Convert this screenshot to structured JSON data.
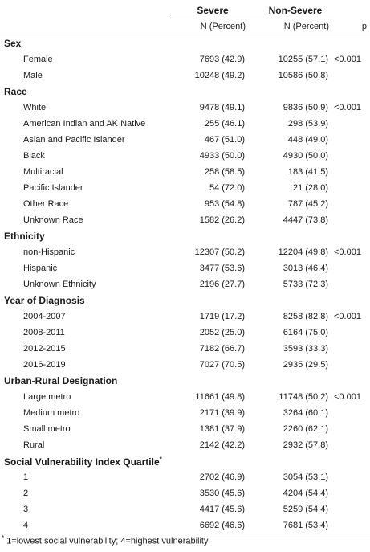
{
  "header": {
    "group_severe": "Severe",
    "group_non_severe": "Non-Severe",
    "sub_severe": "N (Percent)",
    "sub_non_severe": "N (Percent)",
    "p_label": "p"
  },
  "sections": [
    {
      "title": "Sex",
      "marker": "",
      "rows": [
        {
          "label": "Female",
          "severe": "7693 (42.9)",
          "non_severe": "10255 (57.1)",
          "p": "<0.001"
        },
        {
          "label": "Male",
          "severe": "10248 (49.2)",
          "non_severe": "10586 (50.8)",
          "p": ""
        }
      ]
    },
    {
      "title": "Race",
      "marker": "",
      "rows": [
        {
          "label": "White",
          "severe": "9478 (49.1)",
          "non_severe": "9836 (50.9)",
          "p": "<0.001"
        },
        {
          "label": "American Indian and AK Native",
          "severe": "255 (46.1)",
          "non_severe": "298 (53.9)",
          "p": ""
        },
        {
          "label": "Asian and Pacific Islander",
          "severe": "467 (51.0)",
          "non_severe": "448 (49.0)",
          "p": ""
        },
        {
          "label": "Black",
          "severe": "4933 (50.0)",
          "non_severe": "4930 (50.0)",
          "p": ""
        },
        {
          "label": "Multiracial",
          "severe": "258 (58.5)",
          "non_severe": "183 (41.5)",
          "p": ""
        },
        {
          "label": "Pacific Islander",
          "severe": "54 (72.0)",
          "non_severe": "21 (28.0)",
          "p": ""
        },
        {
          "label": "Other Race",
          "severe": "953 (54.8)",
          "non_severe": "787 (45.2)",
          "p": ""
        },
        {
          "label": "Unknown Race",
          "severe": "1582 (26.2)",
          "non_severe": "4447 (73.8)",
          "p": ""
        }
      ]
    },
    {
      "title": "Ethnicity",
      "marker": "",
      "rows": [
        {
          "label": "non-Hispanic",
          "severe": "12307 (50.2)",
          "non_severe": "12204 (49.8)",
          "p": "<0.001"
        },
        {
          "label": "Hispanic",
          "severe": "3477 (53.6)",
          "non_severe": "3013 (46.4)",
          "p": ""
        },
        {
          "label": "Unknown Ethnicity",
          "severe": "2196 (27.7)",
          "non_severe": "5733 (72.3)",
          "p": ""
        }
      ]
    },
    {
      "title": "Year of Diagnosis",
      "marker": "",
      "rows": [
        {
          "label": "2004-2007",
          "severe": "1719 (17.2)",
          "non_severe": "8258 (82.8)",
          "p": "<0.001"
        },
        {
          "label": "2008-2011",
          "severe": "2052 (25.0)",
          "non_severe": "6164 (75.0)",
          "p": ""
        },
        {
          "label": "2012-2015",
          "severe": "7182 (66.7)",
          "non_severe": "3593 (33.3)",
          "p": ""
        },
        {
          "label": "2016-2019",
          "severe": "7027 (70.5)",
          "non_severe": "2935 (29.5)",
          "p": ""
        }
      ]
    },
    {
      "title": "Urban-Rural Designation",
      "marker": "",
      "rows": [
        {
          "label": "Large metro",
          "severe": "11661 (49.8)",
          "non_severe": "11748 (50.2)",
          "p": "<0.001"
        },
        {
          "label": "Medium metro",
          "severe": "2171 (39.9)",
          "non_severe": "3264 (60.1)",
          "p": ""
        },
        {
          "label": "Small metro",
          "severe": "1381 (37.9)",
          "non_severe": "2260 (62.1)",
          "p": ""
        },
        {
          "label": "Rural",
          "severe": "2142 (42.2)",
          "non_severe": "2932 (57.8)",
          "p": ""
        }
      ]
    },
    {
      "title": "Social Vulnerability Index Quartile",
      "marker": "*",
      "rows": [
        {
          "label": "1",
          "severe": "2702 (46.9)",
          "non_severe": "3054 (53.1)",
          "p": ""
        },
        {
          "label": "2",
          "severe": "3530 (45.6)",
          "non_severe": "4204 (54.4)",
          "p": ""
        },
        {
          "label": "3",
          "severe": "4417 (45.6)",
          "non_severe": "5259 (54.4)",
          "p": ""
        },
        {
          "label": "4",
          "severe": "6692 (46.6)",
          "non_severe": "7681 (53.4)",
          "p": ""
        }
      ]
    }
  ],
  "footnote": {
    "marker": "*",
    "text": "1=lowest social vulnerability; 4=highest vulnerability"
  }
}
